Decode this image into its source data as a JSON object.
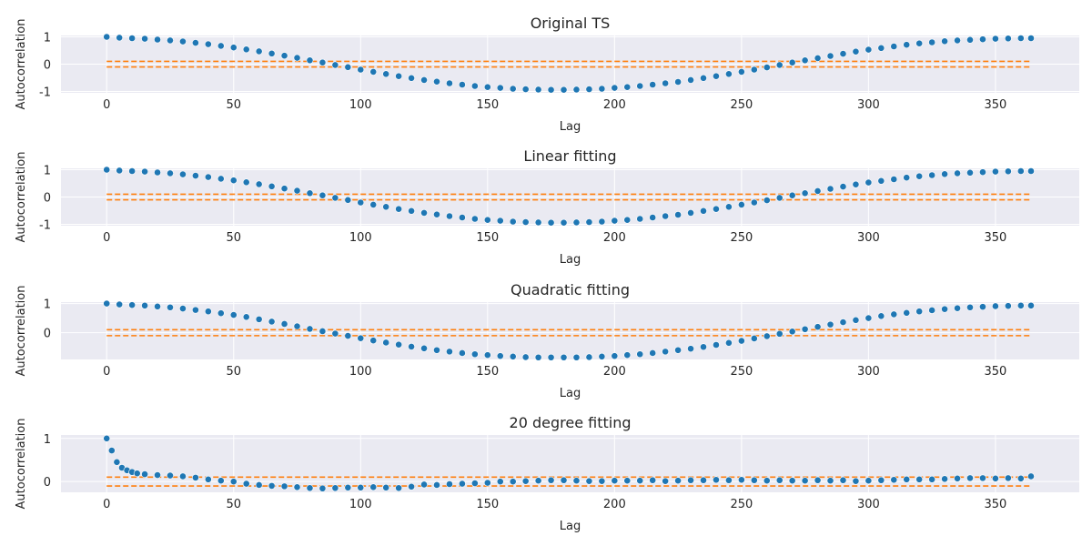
{
  "colors": {
    "points": "#1f77b4",
    "confidence_lines": "#ff7f0e",
    "plot_background": "#eaeaf2",
    "grid": "#ffffff"
  },
  "chart_data": [
    {
      "type": "scatter",
      "title": "Original TS",
      "xlabel": "Lag",
      "ylabel": "Autocorrelation",
      "x_ticks": [
        0,
        50,
        100,
        150,
        200,
        250,
        300,
        350
      ],
      "y_ticks": [
        -1,
        0,
        1
      ],
      "xlim": [
        -18,
        383
      ],
      "ylim": [
        -1.05,
        1.05
      ],
      "grid": true,
      "confidence_bounds": [
        0.103,
        -0.103
      ],
      "series": [
        {
          "x": [
            0,
            5,
            10,
            15,
            20,
            25,
            30,
            35,
            40,
            45,
            50,
            55,
            60,
            65,
            70,
            75,
            80,
            85,
            90,
            95,
            100,
            105,
            110,
            115,
            120,
            125,
            130,
            135,
            140,
            145,
            150,
            155,
            160,
            165,
            170,
            175,
            180,
            185,
            190,
            195,
            200,
            205,
            210,
            215,
            220,
            225,
            230,
            235,
            240,
            245,
            250,
            255,
            260,
            265,
            270,
            275,
            280,
            285,
            290,
            295,
            300,
            305,
            310,
            315,
            320,
            325,
            330,
            335,
            340,
            345,
            350,
            355,
            360,
            364
          ],
          "y": [
            1.0,
            0.97,
            0.95,
            0.93,
            0.9,
            0.87,
            0.83,
            0.78,
            0.73,
            0.67,
            0.61,
            0.54,
            0.47,
            0.39,
            0.31,
            0.23,
            0.14,
            0.06,
            -0.03,
            -0.11,
            -0.2,
            -0.28,
            -0.36,
            -0.44,
            -0.51,
            -0.58,
            -0.64,
            -0.7,
            -0.75,
            -0.8,
            -0.84,
            -0.87,
            -0.9,
            -0.92,
            -0.93,
            -0.94,
            -0.94,
            -0.93,
            -0.92,
            -0.9,
            -0.87,
            -0.84,
            -0.8,
            -0.75,
            -0.7,
            -0.65,
            -0.58,
            -0.51,
            -0.44,
            -0.36,
            -0.28,
            -0.2,
            -0.12,
            -0.03,
            0.06,
            0.14,
            0.22,
            0.3,
            0.38,
            0.46,
            0.53,
            0.59,
            0.65,
            0.71,
            0.76,
            0.8,
            0.84,
            0.87,
            0.89,
            0.91,
            0.93,
            0.94,
            0.95,
            0.95
          ]
        }
      ]
    },
    {
      "type": "scatter",
      "title": "Linear fitting",
      "xlabel": "Lag",
      "ylabel": "Autocorrelation",
      "x_ticks": [
        0,
        50,
        100,
        150,
        200,
        250,
        300,
        350
      ],
      "y_ticks": [
        -1,
        0,
        1
      ],
      "xlim": [
        -18,
        383
      ],
      "ylim": [
        -1.05,
        1.05
      ],
      "grid": true,
      "confidence_bounds": [
        0.103,
        -0.103
      ],
      "series": [
        {
          "x": [
            0,
            5,
            10,
            15,
            20,
            25,
            30,
            35,
            40,
            45,
            50,
            55,
            60,
            65,
            70,
            75,
            80,
            85,
            90,
            95,
            100,
            105,
            110,
            115,
            120,
            125,
            130,
            135,
            140,
            145,
            150,
            155,
            160,
            165,
            170,
            175,
            180,
            185,
            190,
            195,
            200,
            205,
            210,
            215,
            220,
            225,
            230,
            235,
            240,
            245,
            250,
            255,
            260,
            265,
            270,
            275,
            280,
            285,
            290,
            295,
            300,
            305,
            310,
            315,
            320,
            325,
            330,
            335,
            340,
            345,
            350,
            355,
            360,
            364
          ],
          "y": [
            1.0,
            0.97,
            0.95,
            0.93,
            0.9,
            0.87,
            0.83,
            0.78,
            0.73,
            0.67,
            0.61,
            0.54,
            0.47,
            0.39,
            0.31,
            0.23,
            0.14,
            0.06,
            -0.03,
            -0.11,
            -0.2,
            -0.28,
            -0.36,
            -0.44,
            -0.51,
            -0.58,
            -0.64,
            -0.7,
            -0.75,
            -0.8,
            -0.84,
            -0.87,
            -0.9,
            -0.92,
            -0.93,
            -0.94,
            -0.94,
            -0.93,
            -0.92,
            -0.9,
            -0.87,
            -0.84,
            -0.8,
            -0.75,
            -0.7,
            -0.65,
            -0.58,
            -0.51,
            -0.44,
            -0.36,
            -0.28,
            -0.2,
            -0.12,
            -0.03,
            0.06,
            0.14,
            0.22,
            0.3,
            0.38,
            0.46,
            0.53,
            0.59,
            0.65,
            0.71,
            0.76,
            0.8,
            0.84,
            0.87,
            0.89,
            0.91,
            0.93,
            0.94,
            0.95,
            0.95
          ]
        }
      ]
    },
    {
      "type": "scatter",
      "title": "Quadratic fitting",
      "xlabel": "Lag",
      "ylabel": "Autocorrelation",
      "x_ticks": [
        0,
        50,
        100,
        150,
        200,
        250,
        300,
        350
      ],
      "y_ticks": [
        0,
        1
      ],
      "xlim": [
        -18,
        383
      ],
      "ylim": [
        -0.92,
        1.05
      ],
      "grid": true,
      "confidence_bounds": [
        0.103,
        -0.103
      ],
      "series": [
        {
          "x": [
            0,
            5,
            10,
            15,
            20,
            25,
            30,
            35,
            40,
            45,
            50,
            55,
            60,
            65,
            70,
            75,
            80,
            85,
            90,
            95,
            100,
            105,
            110,
            115,
            120,
            125,
            130,
            135,
            140,
            145,
            150,
            155,
            160,
            165,
            170,
            175,
            180,
            185,
            190,
            195,
            200,
            205,
            210,
            215,
            220,
            225,
            230,
            235,
            240,
            245,
            250,
            255,
            260,
            265,
            270,
            275,
            280,
            285,
            290,
            295,
            300,
            305,
            310,
            315,
            320,
            325,
            330,
            335,
            340,
            345,
            350,
            355,
            360,
            364
          ],
          "y": [
            1.0,
            0.97,
            0.95,
            0.93,
            0.9,
            0.87,
            0.83,
            0.78,
            0.73,
            0.67,
            0.61,
            0.54,
            0.46,
            0.38,
            0.3,
            0.22,
            0.13,
            0.05,
            -0.03,
            -0.11,
            -0.19,
            -0.27,
            -0.34,
            -0.41,
            -0.48,
            -0.54,
            -0.6,
            -0.65,
            -0.7,
            -0.74,
            -0.77,
            -0.8,
            -0.82,
            -0.84,
            -0.85,
            -0.85,
            -0.85,
            -0.85,
            -0.84,
            -0.82,
            -0.8,
            -0.77,
            -0.74,
            -0.7,
            -0.65,
            -0.6,
            -0.55,
            -0.49,
            -0.42,
            -0.35,
            -0.28,
            -0.2,
            -0.12,
            -0.04,
            0.04,
            0.12,
            0.2,
            0.28,
            0.36,
            0.43,
            0.5,
            0.57,
            0.63,
            0.68,
            0.73,
            0.77,
            0.81,
            0.84,
            0.87,
            0.89,
            0.91,
            0.92,
            0.93,
            0.93
          ]
        }
      ]
    },
    {
      "type": "scatter",
      "title": "20 degree fitting",
      "xlabel": "Lag",
      "ylabel": "Autocorrelation",
      "x_ticks": [
        0,
        50,
        100,
        150,
        200,
        250,
        300,
        350
      ],
      "y_ticks": [
        0,
        1
      ],
      "xlim": [
        -18,
        383
      ],
      "ylim": [
        -0.25,
        1.08
      ],
      "grid": true,
      "confidence_bounds": [
        0.103,
        -0.103
      ],
      "series": [
        {
          "x": [
            0,
            2,
            4,
            6,
            8,
            10,
            12,
            15,
            20,
            25,
            30,
            35,
            40,
            45,
            50,
            55,
            60,
            65,
            70,
            75,
            80,
            85,
            90,
            95,
            100,
            105,
            110,
            115,
            120,
            125,
            130,
            135,
            140,
            145,
            150,
            155,
            160,
            165,
            170,
            175,
            180,
            185,
            190,
            195,
            200,
            205,
            210,
            215,
            220,
            225,
            230,
            235,
            240,
            245,
            250,
            255,
            260,
            265,
            270,
            275,
            280,
            285,
            290,
            295,
            300,
            305,
            310,
            315,
            320,
            325,
            330,
            335,
            340,
            345,
            350,
            355,
            360,
            364
          ],
          "y": [
            1.0,
            0.72,
            0.45,
            0.32,
            0.26,
            0.22,
            0.19,
            0.17,
            0.15,
            0.14,
            0.12,
            0.09,
            0.05,
            0.02,
            0.0,
            -0.05,
            -0.08,
            -0.1,
            -0.11,
            -0.13,
            -0.15,
            -0.16,
            -0.15,
            -0.14,
            -0.14,
            -0.13,
            -0.14,
            -0.15,
            -0.12,
            -0.07,
            -0.08,
            -0.06,
            -0.05,
            -0.04,
            -0.03,
            0.0,
            0.0,
            0.01,
            0.02,
            0.03,
            0.03,
            0.02,
            0.01,
            0.01,
            0.02,
            0.02,
            0.02,
            0.03,
            0.01,
            0.02,
            0.03,
            0.03,
            0.04,
            0.03,
            0.04,
            0.03,
            0.02,
            0.03,
            0.02,
            0.02,
            0.03,
            0.02,
            0.03,
            0.01,
            0.02,
            0.03,
            0.04,
            0.05,
            0.05,
            0.05,
            0.06,
            0.07,
            0.08,
            0.08,
            0.07,
            0.08,
            0.07,
            0.12
          ]
        }
      ]
    }
  ]
}
